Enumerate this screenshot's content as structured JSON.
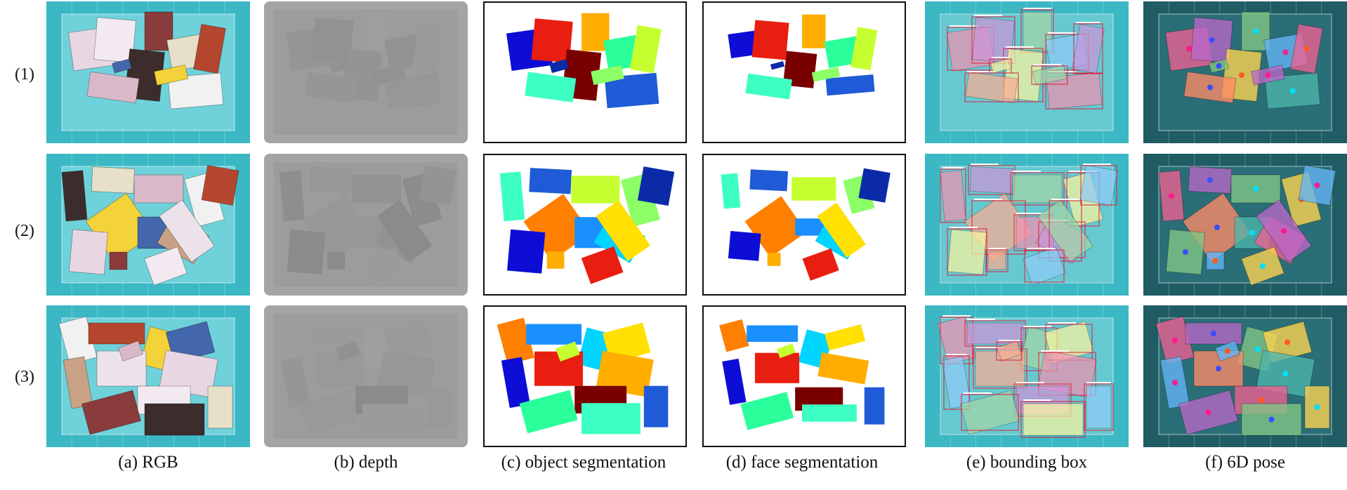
{
  "figure": {
    "row_labels": [
      "(1)",
      "(2)",
      "(3)"
    ],
    "column_captions": [
      "(a) RGB",
      "(b) depth",
      "(c) object segmentation",
      "(d) face segmentation",
      "(e) bounding box",
      "(f) 6D pose"
    ]
  },
  "colors": {
    "bin_teal": "#3bb8c4",
    "bin_dark": "#1e7f8a",
    "depth_gray": "#9a9a9a",
    "pose_tint": "#1f5c63"
  }
}
